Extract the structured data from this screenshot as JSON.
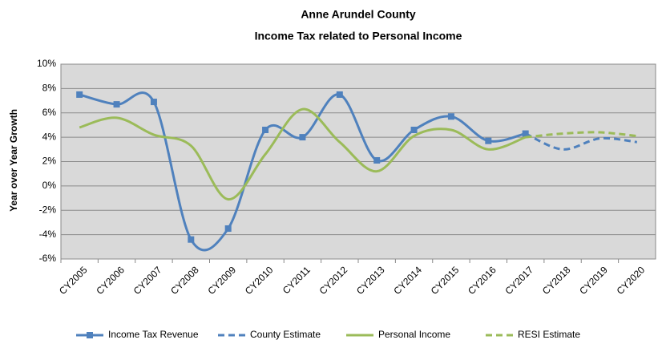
{
  "chart_data": {
    "type": "line",
    "title": "Anne Arundel County",
    "subtitle": "Income Tax related to Personal Income",
    "y_label": "Year over Year Growth",
    "categories": [
      "CY2005",
      "CY2006",
      "CY2007",
      "CY2008",
      "CY2009",
      "CY2010",
      "CY2011",
      "CY2012",
      "CY2013",
      "CY2014",
      "CY2015",
      "CY2016",
      "CY2017",
      "CY2018",
      "CY2019",
      "CY2020"
    ],
    "series": [
      {
        "name": "Income Tax Revenue",
        "color": "#4f81bd",
        "dashed": false,
        "markers": true,
        "values": [
          7.5,
          6.7,
          6.9,
          -4.4,
          -3.5,
          4.6,
          4.0,
          7.5,
          2.1,
          4.6,
          5.7,
          3.7,
          4.3,
          null,
          null,
          null
        ]
      },
      {
        "name": "County Estimate",
        "color": "#4f81bd",
        "dashed": true,
        "markers": false,
        "values": [
          null,
          null,
          null,
          null,
          null,
          null,
          null,
          null,
          null,
          null,
          null,
          null,
          4.3,
          3.0,
          3.9,
          3.6
        ]
      },
      {
        "name": "Personal Income",
        "color": "#9bbb59",
        "dashed": false,
        "markers": false,
        "values": [
          4.8,
          5.6,
          4.2,
          3.3,
          -1.1,
          2.6,
          6.3,
          3.6,
          1.2,
          4.1,
          4.6,
          3.0,
          4.0,
          null,
          null,
          null
        ]
      },
      {
        "name": "RESI Estimate",
        "color": "#9bbb59",
        "dashed": true,
        "markers": false,
        "values": [
          null,
          null,
          null,
          null,
          null,
          null,
          null,
          null,
          null,
          null,
          null,
          null,
          4.0,
          4.3,
          4.4,
          4.1
        ]
      }
    ],
    "ylim": [
      -6,
      10
    ],
    "yticks": [
      {
        "value": -6,
        "label": "-6%"
      },
      {
        "value": -4,
        "label": "-4%"
      },
      {
        "value": -2,
        "label": "-2%"
      },
      {
        "value": 0,
        "label": "0%"
      },
      {
        "value": 2,
        "label": "2%"
      },
      {
        "value": 4,
        "label": "4%"
      },
      {
        "value": 6,
        "label": "6%"
      },
      {
        "value": 8,
        "label": "8%"
      },
      {
        "value": 10,
        "label": "10%"
      }
    ],
    "grid": true,
    "smooth": true,
    "legend": "bottom"
  }
}
